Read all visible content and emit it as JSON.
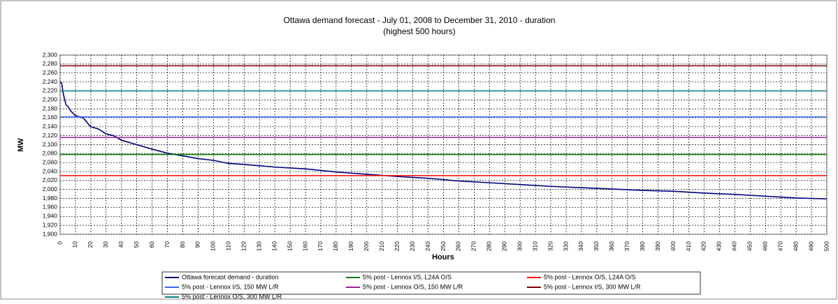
{
  "chart_data": {
    "type": "line",
    "title": "Ottawa demand forecast - July 01, 2008 to December 31, 2010 - duration",
    "subtitle": "(highest 500 hours)",
    "x_label": "Hours",
    "y_label": "MW",
    "xlim": [
      0,
      500
    ],
    "xticks": [
      0,
      10,
      20,
      30,
      40,
      50,
      60,
      70,
      80,
      90,
      100,
      110,
      120,
      130,
      140,
      150,
      160,
      170,
      180,
      190,
      200,
      210,
      220,
      230,
      240,
      250,
      260,
      270,
      280,
      290,
      300,
      310,
      320,
      330,
      340,
      350,
      360,
      370,
      380,
      390,
      400,
      410,
      420,
      430,
      440,
      450,
      460,
      470,
      480,
      490,
      500
    ],
    "ylim": [
      1900,
      2300
    ],
    "yticks": [
      {
        "value": 1900,
        "label": "1,900"
      },
      {
        "value": 1920,
        "label": "1,920"
      },
      {
        "value": 1940,
        "label": "1,940"
      },
      {
        "value": 1960,
        "label": "1,960"
      },
      {
        "value": 1980,
        "label": "1,980"
      },
      {
        "value": 2000,
        "label": "2,000"
      },
      {
        "value": 2020,
        "label": "2,020"
      },
      {
        "value": 2040,
        "label": "2,040"
      },
      {
        "value": 2060,
        "label": "2,060"
      },
      {
        "value": 2080,
        "label": "2,080"
      },
      {
        "value": 2100,
        "label": "2,100"
      },
      {
        "value": 2120,
        "label": "2,120"
      },
      {
        "value": 2140,
        "label": "2,140"
      },
      {
        "value": 2160,
        "label": "2,160"
      },
      {
        "value": 2180,
        "label": "2,180"
      },
      {
        "value": 2200,
        "label": "2,200"
      },
      {
        "value": 2220,
        "label": "2,220"
      },
      {
        "value": 2240,
        "label": "2,240"
      },
      {
        "value": 2260,
        "label": "2,260"
      },
      {
        "value": 2280,
        "label": "2,280"
      },
      {
        "value": 2300,
        "label": "2,300"
      }
    ],
    "grid": true,
    "x": [
      0,
      1,
      2,
      3,
      4,
      5,
      7,
      10,
      15,
      20,
      25,
      30,
      35,
      40,
      50,
      60,
      70,
      80,
      90,
      100,
      110,
      120,
      140,
      160,
      180,
      200,
      220,
      240,
      260,
      280,
      300,
      320,
      340,
      360,
      380,
      400,
      420,
      440,
      460,
      480,
      500
    ],
    "series": [
      {
        "name": "Ottawa forecast demand - duration",
        "color": "#000080",
        "values": [
          2240,
          2238,
          2215,
          2200,
          2188,
          2186,
          2175,
          2165,
          2160,
          2140,
          2135,
          2124,
          2120,
          2110,
          2100,
          2090,
          2081,
          2075,
          2069,
          2065,
          2058,
          2056,
          2050,
          2046,
          2039,
          2034,
          2029,
          2025,
          2019,
          2015,
          2011,
          2007,
          2004,
          2001,
          1998,
          1996,
          1992,
          1989,
          1985,
          1981,
          1979
        ]
      },
      {
        "name": "5% post - Lennox I/S, L24A O/S",
        "color": "#008000",
        "value": 2078
      },
      {
        "name": "5% post - Lennox O/S, L24A O/S",
        "color": "#ff0000",
        "value": 2031
      },
      {
        "name": "5% post - Lennox I/S, 150 MW L/R",
        "color": "#3366ff",
        "value": 2162
      },
      {
        "name": "5% post - Lennox O/S, 150 MW L/R",
        "color": "#a020a0",
        "value": 2116
      },
      {
        "name": "5% post - Lennox I/S, 300 MW L/R",
        "color": "#800000",
        "value": 2276
      },
      {
        "name": "5% post - Lennox O/S, 300 MW L/R",
        "color": "#008080",
        "value": 2220
      }
    ],
    "legend": "bottom"
  }
}
